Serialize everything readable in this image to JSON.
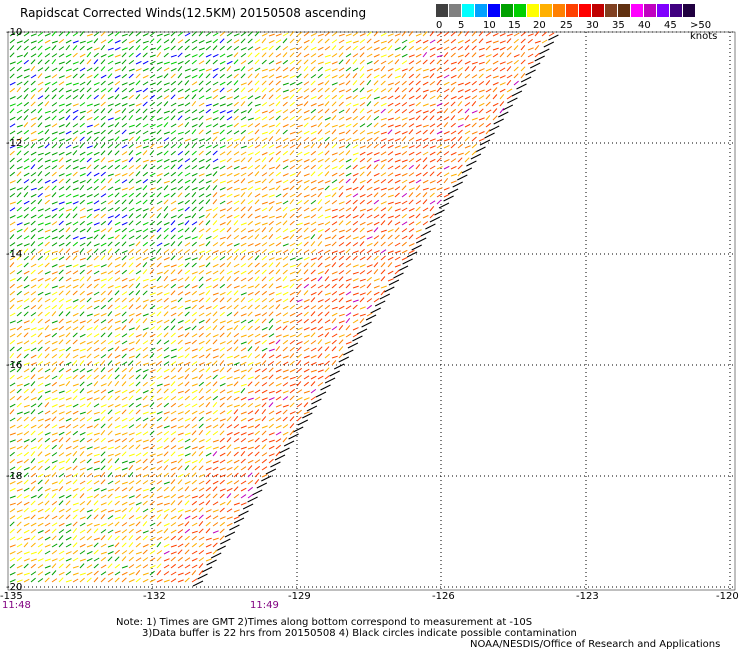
{
  "title": "Rapidscat Corrected Winds(12.5KM) 20150508 ascending",
  "scale": {
    "colors": [
      "#404040",
      "#808080",
      "#00ffff",
      "#00a0ff",
      "#0000ff",
      "#00a000",
      "#00d000",
      "#ffff00",
      "#ffb000",
      "#ff8000",
      "#ff4000",
      "#ff0000",
      "#c00000",
      "#804020",
      "#603010",
      "#ff00ff",
      "#c000c0",
      "#8000ff",
      "#400080",
      "#200040"
    ],
    "labels": [
      "0",
      "5",
      "10",
      "15",
      "20",
      "25",
      "30",
      "35",
      "40",
      "45",
      ">50 knots"
    ]
  },
  "map": {
    "y_labels": [
      "-10",
      "-12",
      "-14",
      "-16",
      "-18",
      "-20"
    ],
    "x_labels": [
      "-135",
      "-132",
      "-129",
      "-126",
      "-123",
      "-120"
    ],
    "time_labels": [
      "11:48",
      "11:49"
    ]
  },
  "notes": {
    "line1": "Note: 1) Times are GMT 2)Times along bottom correspond to measurement at -10S",
    "line2": "3)Data buffer is 22 hrs from 20150508 4) Black circles indicate possible contamination",
    "line3": "NOAA/NESDIS/Office of Research and Applications"
  }
}
